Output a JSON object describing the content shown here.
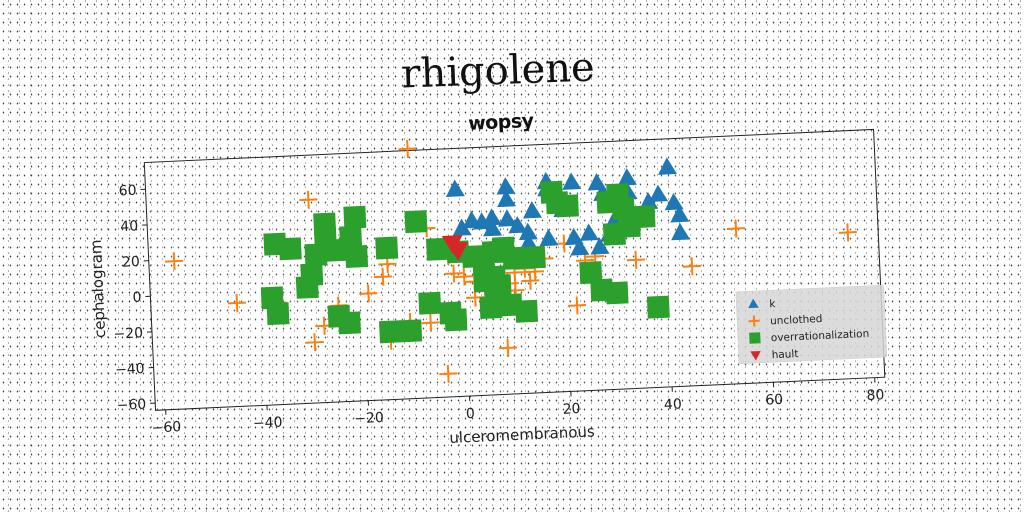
{
  "figure": {
    "suptitle": "rhigolene"
  },
  "chart_data": {
    "type": "scatter",
    "title": "wopsy",
    "xlabel": "ulceromembranous",
    "ylabel": "cephalogram",
    "xlim": [
      -62,
      82
    ],
    "ylim": [
      -64,
      75
    ],
    "xticks": [
      -60,
      -40,
      -20,
      0,
      20,
      40,
      60,
      80
    ],
    "yticks": [
      -60,
      -40,
      -20,
      0,
      20,
      40,
      60
    ],
    "grid": false,
    "legend_position": "lower-right",
    "series": [
      {
        "name": "k",
        "marker": "triangle-up",
        "color": "#1f77b4",
        "points": [
          [
            -1,
            52
          ],
          [
            9,
            52
          ],
          [
            9,
            45
          ],
          [
            17,
            54
          ],
          [
            17,
            50
          ],
          [
            22,
            53
          ],
          [
            27,
            52
          ],
          [
            28,
            46
          ],
          [
            33,
            54
          ],
          [
            41,
            59
          ],
          [
            33,
            46
          ],
          [
            37,
            40
          ],
          [
            39,
            44
          ],
          [
            42,
            39
          ],
          [
            43,
            32
          ],
          [
            35,
            32
          ],
          [
            30,
            30
          ],
          [
            29,
            23
          ],
          [
            25,
            24
          ],
          [
            22,
            22
          ],
          [
            17,
            22
          ],
          [
            13,
            26
          ],
          [
            11,
            30
          ],
          [
            9,
            34
          ],
          [
            6,
            35
          ],
          [
            6,
            29
          ],
          [
            4,
            33
          ],
          [
            2,
            34
          ],
          [
            0,
            30
          ],
          [
            20,
            38
          ],
          [
            14,
            38
          ],
          [
            43,
            22
          ],
          [
            27,
            16
          ],
          [
            23,
            16
          ],
          [
            13,
            20
          ]
        ]
      },
      {
        "name": "unclothed",
        "marker": "plus",
        "color": "#ff7f0e",
        "points": [
          [
            -10,
            76
          ],
          [
            -30,
            50
          ],
          [
            -57,
            19
          ],
          [
            -45,
            -6
          ],
          [
            -37,
            -7
          ],
          [
            -25,
            -10
          ],
          [
            -28,
            -21
          ],
          [
            -30,
            -30
          ],
          [
            -15,
            -31
          ],
          [
            -15,
            12
          ],
          [
            -16,
            5
          ],
          [
            -7,
            31
          ],
          [
            -3,
            15
          ],
          [
            -2,
            5
          ],
          [
            0,
            3
          ],
          [
            2,
            0
          ],
          [
            4,
            -3
          ],
          [
            6,
            2
          ],
          [
            9,
            -2
          ],
          [
            10,
            4
          ],
          [
            12,
            6
          ],
          [
            13,
            -1
          ],
          [
            14,
            4
          ],
          [
            16,
            11
          ],
          [
            20,
            19
          ],
          [
            24,
            9
          ],
          [
            26,
            11
          ],
          [
            22,
            -16
          ],
          [
            34,
            8
          ],
          [
            45,
            3
          ],
          [
            54,
            23
          ],
          [
            76,
            18
          ],
          [
            8,
            -38
          ],
          [
            -4,
            -51
          ],
          [
            -11,
            -21
          ],
          [
            -7,
            -22
          ],
          [
            2,
            -9
          ],
          [
            10,
            -6
          ],
          [
            -19,
            -4
          ]
        ]
      },
      {
        "name": "overrationalization",
        "marker": "square",
        "color": "#2ca02c",
        "points": [
          [
            -37,
            26
          ],
          [
            -34,
            23
          ],
          [
            -29,
            19
          ],
          [
            -30,
            8
          ],
          [
            -31,
            1
          ],
          [
            -38,
            -4
          ],
          [
            -37,
            -13
          ],
          [
            -27,
            36
          ],
          [
            -27,
            28
          ],
          [
            -25,
            21
          ],
          [
            -21,
            39
          ],
          [
            -21,
            17
          ],
          [
            -15,
            21
          ],
          [
            -25,
            -16
          ],
          [
            -23,
            -20
          ],
          [
            -15,
            -26
          ],
          [
            -11,
            -26
          ],
          [
            -7,
            -11
          ],
          [
            -3,
            -17
          ],
          [
            -2,
            -21
          ],
          [
            -9,
            35
          ],
          [
            -5,
            19
          ],
          [
            -1,
            17
          ],
          [
            2,
            14
          ],
          [
            4,
            10
          ],
          [
            6,
            16
          ],
          [
            8,
            18
          ],
          [
            10,
            12
          ],
          [
            14,
            12
          ],
          [
            6,
            2
          ],
          [
            6,
            -8
          ],
          [
            5,
            -15
          ],
          [
            9,
            -14
          ],
          [
            12,
            -18
          ],
          [
            7,
            -3
          ],
          [
            18,
            48
          ],
          [
            19,
            42
          ],
          [
            21,
            40
          ],
          [
            31,
            45
          ],
          [
            29,
            41
          ],
          [
            32,
            37
          ],
          [
            36,
            32
          ],
          [
            33,
            27
          ],
          [
            30,
            23
          ],
          [
            25,
            2
          ],
          [
            27,
            -8
          ],
          [
            30,
            -10
          ],
          [
            38,
            -19
          ],
          [
            4,
            0
          ],
          [
            -22,
            28
          ]
        ]
      },
      {
        "name": "hault",
        "marker": "triangle-down",
        "color": "#d62728",
        "points": [
          [
            -2,
            22
          ],
          [
            -1,
            18
          ]
        ]
      }
    ]
  }
}
